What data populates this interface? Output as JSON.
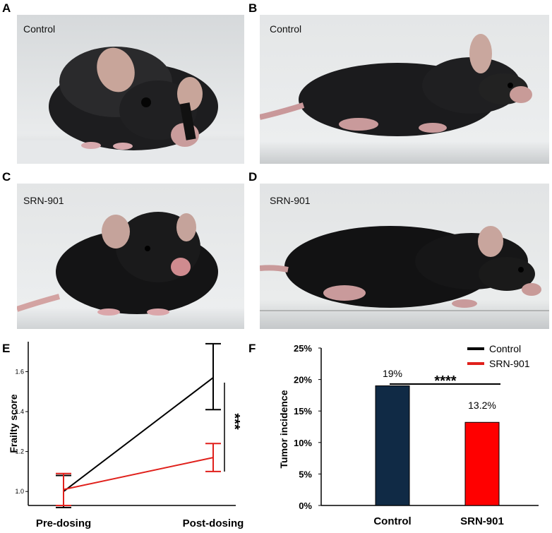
{
  "panels": {
    "A": {
      "letter": "A",
      "label": "Control"
    },
    "B": {
      "letter": "B",
      "label": "Control"
    },
    "C": {
      "letter": "C",
      "label": "SRN-901"
    },
    "D": {
      "letter": "D",
      "label": "SRN-901"
    },
    "E": {
      "letter": "E"
    },
    "F": {
      "letter": "F"
    }
  },
  "colors": {
    "control": "#000000",
    "srn901": "#e0201b",
    "bar_control": "#102a45",
    "bar_srn901": "#ff0000"
  },
  "chart_data": [
    {
      "panel": "E",
      "type": "line",
      "ylabel": "Frailty score",
      "xlabel": "",
      "categories": [
        "Pre-dosing",
        "Post-dosing"
      ],
      "yticks": [
        "1.0",
        "1.2",
        "1.4",
        "1.6"
      ],
      "ylim": [
        0.93,
        1.75
      ],
      "series": [
        {
          "name": "Control",
          "color": "#000000",
          "values": [
            1.0,
            1.57
          ],
          "err_low": [
            0.92,
            1.41
          ],
          "err_high": [
            1.08,
            1.74
          ]
        },
        {
          "name": "SRN-901",
          "color": "#e0201b",
          "values": [
            1.01,
            1.17
          ],
          "err_low": [
            0.93,
            1.1
          ],
          "err_high": [
            1.09,
            1.24
          ]
        }
      ],
      "annotations": [
        {
          "text": "***",
          "between": "Post-dosing"
        }
      ]
    },
    {
      "panel": "F",
      "type": "bar",
      "ylabel": "Tumor incidence",
      "xlabel": "",
      "categories": [
        "Control",
        "SRN-901"
      ],
      "values": [
        19.0,
        13.2
      ],
      "data_labels": [
        "19%",
        "13.2%"
      ],
      "yticks": [
        "0%",
        "5%",
        "10%",
        "15%",
        "20%",
        "25%"
      ],
      "ylim": [
        0,
        25
      ],
      "legend": {
        "placement": "top-right",
        "entries": [
          "Control",
          "SRN-901"
        ]
      },
      "annotations": [
        {
          "text": "****",
          "between": [
            "Control",
            "SRN-901"
          ]
        }
      ]
    }
  ]
}
